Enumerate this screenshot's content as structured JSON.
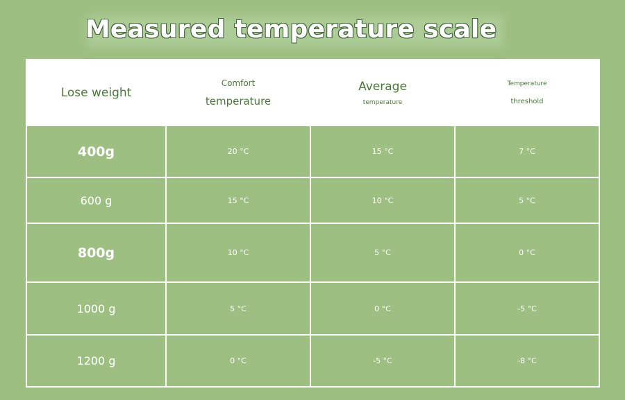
{
  "title": "Measured temperature scale",
  "header": {
    "col1": "Lose weight",
    "col2_line1": "Comfort",
    "col2_line2": "temperature",
    "col3_line1": "Average",
    "col3_line2": "temperature",
    "col4_line1": "Temperature",
    "col4_line2": "threshold"
  },
  "rows": [
    {
      "weight": "400g",
      "comfort": "20 °C",
      "average": "15 °C",
      "threshold": "7 °C"
    },
    {
      "weight": "600 g",
      "comfort": "15 °C",
      "average": "10 °C",
      "threshold": "5 °C"
    },
    {
      "weight": "800g",
      "comfort": "10 °C",
      "average": "5 °C",
      "threshold": "0 °C"
    },
    {
      "weight": "1000 g",
      "comfort": "5 °C",
      "average": "0 °C",
      "threshold": "-5 °C"
    },
    {
      "weight": "1200 g",
      "comfort": "0 °C",
      "average": "-5 °C",
      "threshold": "-8 °C"
    }
  ],
  "colors": {
    "background": "#9dbf82",
    "header_text": "#4a7a38",
    "cell_text": "#ffffff"
  }
}
